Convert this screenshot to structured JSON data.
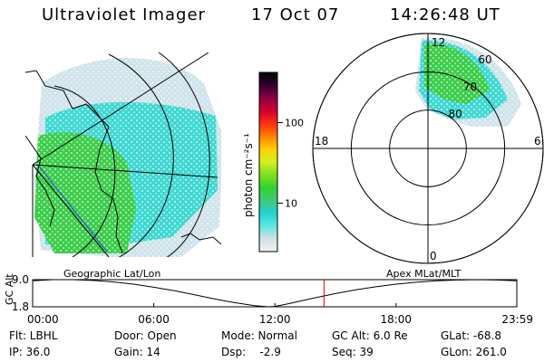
{
  "header": {
    "title": "Ultraviolet Imager",
    "date": "17 Oct 07",
    "time": "14:26:48 UT"
  },
  "colorbar": {
    "label": "photon cm⁻²s⁻¹",
    "ticks": [
      {
        "value": 10,
        "label": "10"
      },
      {
        "value": 100,
        "label": "100"
      }
    ],
    "range": [
      2.5,
      420
    ],
    "stops": [
      "#f2f2f2",
      "#cfe0e8",
      "#5fe8e0",
      "#20d2d2",
      "#40c878",
      "#30d230",
      "#7ee020",
      "#d2f020",
      "#ffd000",
      "#ff8000",
      "#ff3010",
      "#d00030",
      "#900040",
      "#300030",
      "#000000"
    ]
  },
  "panels": {
    "left_label": "Geographic Lat/Lon",
    "right_label": "Apex  MLat/MLT"
  },
  "polar": {
    "mlt_labels": [
      {
        "mlt": 12,
        "label": "12"
      },
      {
        "mlt": 18,
        "label": "18"
      },
      {
        "mlt": 6,
        "label": "6"
      },
      {
        "mlt": 0,
        "label": "0"
      }
    ],
    "mlat_rings": [
      {
        "mlat": 80,
        "label": "80"
      },
      {
        "mlat": 70,
        "label": "70"
      },
      {
        "mlat": 60,
        "label": "60"
      }
    ]
  },
  "chart_data": {
    "type": "line",
    "title": "GC Alt",
    "ylabel": "GC Alt",
    "yticks": [
      "9.0",
      "1.8"
    ],
    "ylim": [
      1.8,
      9.0
    ],
    "xlim": [
      0,
      1439
    ],
    "xticks": [
      {
        "minute": 0,
        "label": "00:00"
      },
      {
        "minute": 360,
        "label": "06:00"
      },
      {
        "minute": 720,
        "label": "12:00"
      },
      {
        "minute": 1080,
        "label": "18:00"
      },
      {
        "minute": 1439,
        "label": "23:59"
      }
    ],
    "series": [
      {
        "name": "GC Alt",
        "x": [
          0,
          60,
          120,
          180,
          240,
          300,
          360,
          420,
          480,
          540,
          600,
          660,
          700,
          720,
          760,
          840,
          900,
          960,
          1020,
          1080,
          1140,
          1200,
          1260,
          1320,
          1380,
          1439
        ],
        "values": [
          8.7,
          9.0,
          9.0,
          8.8,
          8.4,
          7.8,
          7.0,
          6.1,
          5.0,
          3.9,
          2.9,
          2.1,
          1.8,
          1.9,
          2.6,
          4.2,
          5.3,
          6.3,
          7.1,
          7.8,
          8.3,
          8.7,
          8.9,
          9.0,
          8.9,
          8.7
        ]
      }
    ],
    "marker_minute": 866,
    "marker_color": "#e00000"
  },
  "footer": {
    "filter": "Flt: LBHL",
    "ip": "IP: 36.0",
    "door": "Door: Open",
    "gain": "Gain: 14",
    "mode": "Mode: Normal",
    "dsp": "Dsp:    -2.9",
    "gcalt": "GC Alt: 6.0 Re",
    "seq": "Seq: 39",
    "glat": "GLat: -68.8",
    "glon": "GLon: 261.0"
  }
}
